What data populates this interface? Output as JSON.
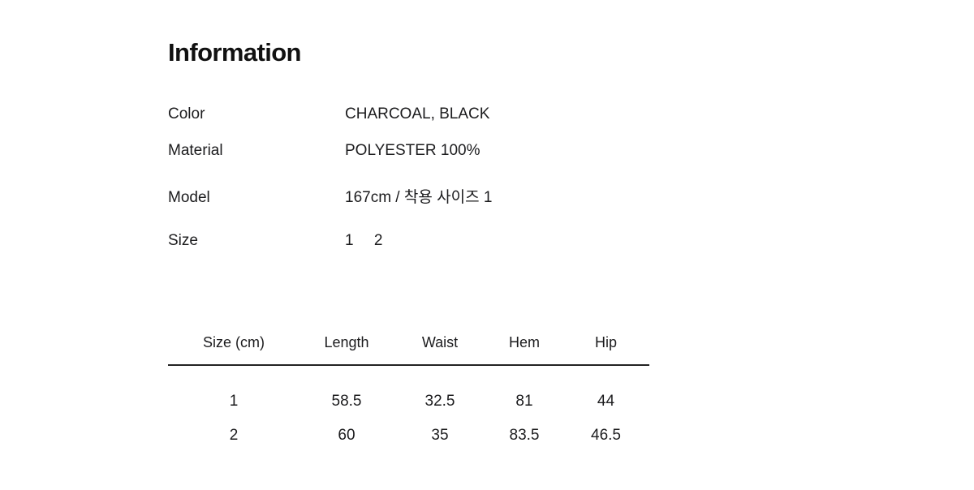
{
  "page": {
    "title": "Information"
  },
  "info": {
    "rows": [
      {
        "label": "Color",
        "value": "CHARCOAL, BLACK"
      },
      {
        "label": "Material",
        "value": "POLYESTER 100%"
      },
      {
        "label": "Model",
        "value": "167cm / 착용 사이즈 1"
      },
      {
        "label": "Size"
      }
    ],
    "size_options": [
      "1",
      "2"
    ]
  },
  "size_table": {
    "headers": [
      "Size (cm)",
      "Length",
      "Waist",
      "Hem",
      "Hip"
    ],
    "rows": [
      [
        "1",
        "58.5",
        "32.5",
        "81",
        "44"
      ],
      [
        "2",
        "60",
        "35",
        "83.5",
        "46.5"
      ]
    ]
  },
  "colors": {
    "background": "#ffffff",
    "text": "#1c1c1e",
    "divider": "#222222"
  }
}
